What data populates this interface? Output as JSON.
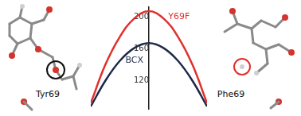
{
  "chart_data": {
    "type": "line",
    "x": [
      -1,
      -0.75,
      -0.5,
      -0.25,
      0,
      0.25,
      0.5,
      0.75,
      1
    ],
    "series": [
      {
        "name": "Y69F",
        "color": "#e0302c",
        "values": [
          92,
          140,
          175,
          198,
          207,
          198,
          175,
          140,
          92
        ]
      },
      {
        "name": "BCX",
        "color": "#1f2a48",
        "values": [
          88,
          120,
          145,
          161,
          167,
          161,
          145,
          120,
          88
        ]
      }
    ],
    "xlim": [
      -1,
      1
    ],
    "ylim": [
      85,
      212
    ],
    "yticks": [
      120,
      160,
      200
    ],
    "grid": false,
    "tick_labels": "y",
    "annotations": [
      "Tyr69",
      "Phe69"
    ]
  }
}
